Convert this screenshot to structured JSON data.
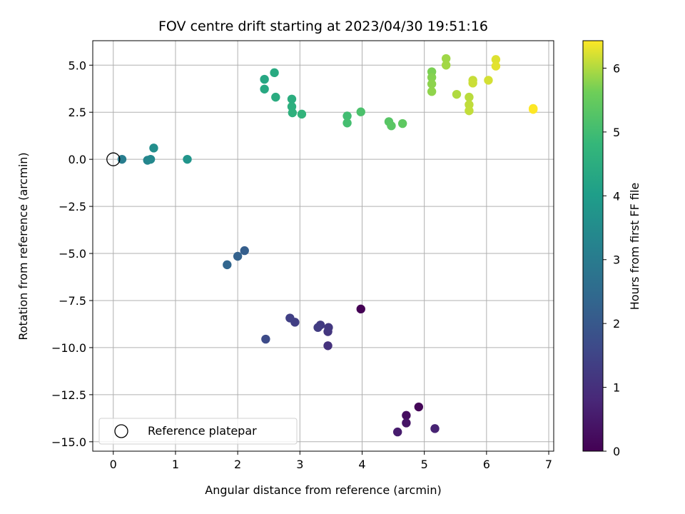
{
  "chart_data": {
    "type": "scatter",
    "title": "FOV centre drift starting at 2023/04/30 19:51:16",
    "xlabel": "Angular distance from reference (arcmin)",
    "ylabel": "Rotation from reference (arcmin)",
    "xlim": [
      -0.33,
      7.08
    ],
    "ylim": [
      -15.5,
      6.3
    ],
    "xticks": [
      0,
      1,
      2,
      3,
      4,
      5,
      6,
      7
    ],
    "xtick_labels": [
      "0",
      "1",
      "2",
      "3",
      "4",
      "5",
      "6",
      "7"
    ],
    "yticks": [
      5.0,
      2.5,
      0.0,
      -2.5,
      -5.0,
      -7.5,
      -10.0,
      -12.5,
      -15.0
    ],
    "ytick_labels": [
      "5.0",
      "2.5",
      "0.0",
      "−2.5",
      "−5.0",
      "−7.5",
      "−10.0",
      "−12.5",
      "−15.0"
    ],
    "grid": true,
    "legend": {
      "placement": "lower-left",
      "entries": [
        {
          "label": "Reference platepar",
          "marker": "open-circle"
        }
      ]
    },
    "reference_point": {
      "x": 0,
      "y": 0
    },
    "colorbar": {
      "label": "Hours from first FF file",
      "colormap": "viridis",
      "range": [
        0,
        6.43
      ],
      "ticks": [
        0,
        1,
        2,
        3,
        4,
        5,
        6
      ],
      "tick_labels": [
        "0",
        "1",
        "2",
        "3",
        "4",
        "5",
        "6"
      ]
    },
    "points": [
      {
        "x": 3.98,
        "y": -7.95,
        "c": 0.0
      },
      {
        "x": 4.91,
        "y": -13.15,
        "c": 0.1
      },
      {
        "x": 4.71,
        "y": -13.6,
        "c": 0.25
      },
      {
        "x": 4.71,
        "y": -14.0,
        "c": 0.4
      },
      {
        "x": 4.57,
        "y": -14.48,
        "c": 0.55
      },
      {
        "x": 5.17,
        "y": -14.3,
        "c": 0.7
      },
      {
        "x": 3.45,
        "y": -9.9,
        "c": 1.05
      },
      {
        "x": 3.45,
        "y": -9.15,
        "c": 1.15
      },
      {
        "x": 3.46,
        "y": -8.93,
        "c": 1.2
      },
      {
        "x": 3.33,
        "y": -8.8,
        "c": 1.25
      },
      {
        "x": 3.29,
        "y": -8.93,
        "c": 1.3
      },
      {
        "x": 2.92,
        "y": -8.65,
        "c": 1.35
      },
      {
        "x": 2.84,
        "y": -8.43,
        "c": 1.4
      },
      {
        "x": 2.45,
        "y": -9.55,
        "c": 1.65
      },
      {
        "x": 2.11,
        "y": -4.85,
        "c": 2.15
      },
      {
        "x": 2.0,
        "y": -5.15,
        "c": 2.25
      },
      {
        "x": 1.83,
        "y": -5.6,
        "c": 2.35
      },
      {
        "x": 0.14,
        "y": 0.0,
        "c": 3.05
      },
      {
        "x": 0.55,
        "y": -0.05,
        "c": 3.3
      },
      {
        "x": 0.6,
        "y": 0.0,
        "c": 3.4
      },
      {
        "x": 0.65,
        "y": 0.6,
        "c": 3.55
      },
      {
        "x": 1.19,
        "y": 0.0,
        "c": 3.75
      },
      {
        "x": 2.43,
        "y": 4.25,
        "c": 4.3
      },
      {
        "x": 2.43,
        "y": 3.73,
        "c": 4.35
      },
      {
        "x": 2.59,
        "y": 4.6,
        "c": 4.4
      },
      {
        "x": 2.61,
        "y": 3.3,
        "c": 4.45
      },
      {
        "x": 2.87,
        "y": 3.2,
        "c": 4.5
      },
      {
        "x": 2.87,
        "y": 2.8,
        "c": 4.55
      },
      {
        "x": 2.88,
        "y": 2.47,
        "c": 4.6
      },
      {
        "x": 3.03,
        "y": 2.4,
        "c": 4.7
      },
      {
        "x": 3.76,
        "y": 2.3,
        "c": 5.0
      },
      {
        "x": 3.76,
        "y": 1.93,
        "c": 5.05
      },
      {
        "x": 3.98,
        "y": 2.52,
        "c": 5.15
      },
      {
        "x": 4.43,
        "y": 2.0,
        "c": 5.3
      },
      {
        "x": 4.47,
        "y": 1.78,
        "c": 5.35
      },
      {
        "x": 4.65,
        "y": 1.9,
        "c": 5.4
      },
      {
        "x": 5.12,
        "y": 4.65,
        "c": 5.7
      },
      {
        "x": 5.12,
        "y": 4.35,
        "c": 5.75
      },
      {
        "x": 5.12,
        "y": 4.0,
        "c": 5.8
      },
      {
        "x": 5.12,
        "y": 3.6,
        "c": 5.82
      },
      {
        "x": 5.35,
        "y": 5.35,
        "c": 5.9
      },
      {
        "x": 5.35,
        "y": 5.0,
        "c": 5.92
      },
      {
        "x": 5.52,
        "y": 3.45,
        "c": 6.0
      },
      {
        "x": 5.72,
        "y": 3.3,
        "c": 6.05
      },
      {
        "x": 5.72,
        "y": 2.9,
        "c": 6.08
      },
      {
        "x": 5.72,
        "y": 2.58,
        "c": 6.1
      },
      {
        "x": 5.78,
        "y": 4.2,
        "c": 6.12
      },
      {
        "x": 5.78,
        "y": 4.05,
        "c": 6.15
      },
      {
        "x": 6.03,
        "y": 4.2,
        "c": 6.2
      },
      {
        "x": 6.15,
        "y": 5.3,
        "c": 6.25
      },
      {
        "x": 6.15,
        "y": 4.95,
        "c": 6.28
      },
      {
        "x": 6.75,
        "y": 2.7,
        "c": 6.4
      },
      {
        "x": 6.75,
        "y": 2.65,
        "c": 6.43
      }
    ]
  }
}
